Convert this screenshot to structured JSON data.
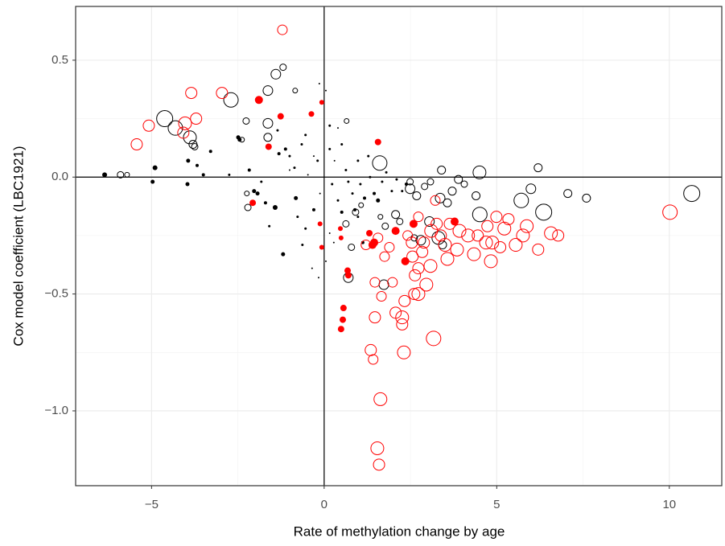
{
  "chart_data": {
    "type": "scatter",
    "xlabel": "Rate of methylation change by age",
    "ylabel": "Cox model coefficient (LBC1921)",
    "xlim": [
      -7.2,
      11.52
    ],
    "ylim": [
      -1.32,
      0.73
    ],
    "xticks": [
      {
        "value": -5,
        "label": "−5"
      },
      0,
      5,
      10
    ],
    "yticks": [
      {
        "value": -1.0,
        "label": "−1.0"
      },
      {
        "value": -0.5,
        "label": "−0.5"
      },
      {
        "value": 0,
        "label": "0.0"
      },
      0.5
    ],
    "grid": true,
    "hline": 0,
    "vline": 0,
    "series": [
      {
        "color": "#000000",
        "filled": true,
        "x": [
          -6.36,
          -4.9,
          -4.97,
          -3.94,
          -3.96,
          -3.68,
          -3.5,
          -3.29,
          -2.75,
          -2.49,
          -2.45,
          -2.17,
          -2.03,
          -1.93,
          -1.82,
          -1.7,
          -1.42,
          -1.19,
          -1.31,
          -1.12,
          -1.0,
          -0.86,
          -0.82,
          -0.65,
          -0.54,
          -0.47,
          -0.3,
          -0.19,
          -0.12,
          -0.14,
          0.05,
          0.16,
          0.23,
          0.3,
          0.4,
          0.51,
          0.63,
          0.7,
          0.82,
          0.89,
          0.98,
          1.05,
          1.17,
          1.28,
          1.33,
          1.45,
          1.56,
          1.68,
          1.8,
          1.96,
          2.1,
          2.26,
          2.38,
          -0.35,
          -0.16,
          0.05,
          0.16,
          0.28,
          -0.63,
          -0.54,
          -0.77,
          -1.59,
          0.4,
          0.51,
          0.16,
          -0.3,
          -1.35,
          -1.0,
          1.12,
          0.98
        ],
        "y": [
          0.01,
          0.04,
          -0.02,
          0.07,
          -0.03,
          0.05,
          0.01,
          0.11,
          0.01,
          0.17,
          0.16,
          0.03,
          -0.06,
          -0.07,
          -0.02,
          -0.11,
          -0.13,
          -0.33,
          0.1,
          0.12,
          0.09,
          0.04,
          -0.09,
          0.14,
          0.18,
          0.01,
          -0.14,
          0.07,
          -0.07,
          0.4,
          0.37,
          0.22,
          -0.03,
          0.07,
          -0.1,
          -0.15,
          0.03,
          -0.02,
          -0.07,
          -0.14,
          0.07,
          -0.03,
          -0.09,
          0.09,
          0.0,
          -0.07,
          -0.1,
          -0.02,
          0.02,
          -0.06,
          -0.01,
          -0.06,
          -0.03,
          -0.39,
          -0.43,
          -0.36,
          -0.24,
          -0.28,
          -0.29,
          -0.22,
          -0.17,
          -0.21,
          0.21,
          0.14,
          0.12,
          0.09,
          0.2,
          0.03,
          -0.28,
          -0.17
        ],
        "sizes": [
          3,
          3,
          2.5,
          2.5,
          2.5,
          2,
          2,
          2,
          1.5,
          2.5,
          2.5,
          2,
          2.5,
          2.5,
          1.5,
          2,
          3,
          2.5,
          2,
          2,
          1.5,
          1.5,
          2.5,
          1.5,
          1.5,
          1,
          2,
          1.5,
          1,
          1,
          1,
          1.5,
          1.5,
          1,
          1.5,
          2,
          1.5,
          1.5,
          1.5,
          2,
          1.5,
          1.5,
          2,
          1.5,
          1.5,
          2,
          2.5,
          1.5,
          1.5,
          1.5,
          1.5,
          1.5,
          2,
          1,
          1,
          1,
          1,
          1,
          1.5,
          1.5,
          1.5,
          1.5,
          1,
          1.5,
          1.5,
          1,
          1.5,
          1,
          2,
          1.5
        ]
      },
      {
        "color": "#000000",
        "filled": false,
        "x": [
          -2.7,
          -4.62,
          -4.31,
          -3.89,
          -3.8,
          -3.75,
          -5.9,
          -5.71,
          -1.4,
          -1.19,
          -1.63,
          -1.63,
          -1.63,
          -2.26,
          -2.38,
          -0.84,
          0.65,
          1.61,
          3.4,
          6.2,
          4.5,
          3.89,
          4.06,
          5.99,
          7.06,
          7.6,
          5.71,
          6.36,
          4.51,
          4.4,
          3.36,
          3.71,
          2.49,
          2.68,
          2.91,
          3.08,
          3.57,
          3.43,
          2.8,
          3.05,
          2.07,
          2.19,
          1.77,
          1.63,
          0.63,
          0.79,
          0.7,
          1.73,
          -2.21,
          10.65,
          -2.24,
          3.31,
          2.49,
          0.91,
          1.07,
          2.61
        ],
        "y": [
          0.33,
          0.25,
          0.21,
          0.17,
          0.14,
          0.13,
          0.01,
          0.01,
          0.44,
          0.47,
          0.37,
          0.23,
          0.17,
          0.24,
          0.16,
          0.37,
          0.24,
          0.06,
          0.03,
          0.04,
          0.02,
          -0.01,
          -0.03,
          -0.05,
          -0.07,
          -0.09,
          -0.1,
          -0.15,
          -0.16,
          -0.08,
          -0.09,
          -0.06,
          -0.05,
          -0.08,
          -0.04,
          -0.02,
          -0.11,
          -0.29,
          -0.27,
          -0.19,
          -0.16,
          -0.19,
          -0.21,
          -0.17,
          -0.2,
          -0.3,
          -0.43,
          -0.46,
          -0.13,
          -0.07,
          -0.07,
          -0.26,
          -0.02,
          -0.15,
          -0.12,
          -0.26
        ],
        "sizes": [
          9,
          10,
          9,
          8,
          5,
          4,
          4,
          3,
          6,
          4,
          6,
          6,
          5,
          4,
          3,
          3,
          3,
          9,
          5,
          5,
          8,
          5,
          4,
          6,
          5,
          5,
          9,
          10,
          9,
          5,
          6,
          5,
          6,
          5,
          4,
          4,
          5,
          5,
          6,
          6,
          5,
          4,
          4,
          3,
          4,
          4,
          6,
          6,
          4,
          10,
          3,
          8,
          4,
          4,
          3,
          4
        ]
      },
      {
        "color": "#ff0000",
        "filled": false,
        "x": [
          -3.85,
          -2.96,
          -1.21,
          -5.08,
          -5.43,
          -4.03,
          -3.71,
          -4.08,
          10.02,
          3.22,
          1.47,
          1.66,
          1.98,
          1.35,
          1.42,
          1.47,
          1.63,
          1.54,
          1.59,
          2.07,
          2.26,
          2.26,
          2.31,
          3.17,
          2.33,
          2.61,
          2.73,
          2.96,
          2.63,
          2.73,
          3.08,
          2.56,
          2.84,
          2.54,
          2.42,
          2.89,
          3.38,
          3.5,
          3.57,
          3.85,
          4.34,
          4.83,
          4.87,
          4.45,
          4.73,
          5.1,
          5.22,
          5.34,
          5.55,
          5.76,
          5.87,
          6.2,
          6.57,
          6.78,
          1.75,
          1.89,
          1.21,
          1.56,
          3.64,
          3.26,
          2.73,
          4.99,
          4.17,
          3.92,
          4.69,
          3.1
        ],
        "y": [
          0.36,
          0.36,
          0.63,
          0.22,
          0.14,
          0.23,
          0.25,
          0.19,
          -0.15,
          -0.1,
          -0.45,
          -0.51,
          -0.45,
          -0.74,
          -0.78,
          -0.6,
          -0.95,
          -1.16,
          -1.23,
          -0.58,
          -0.6,
          -0.63,
          -0.75,
          -0.69,
          -0.53,
          -0.5,
          -0.5,
          -0.46,
          -0.42,
          -0.39,
          -0.38,
          -0.34,
          -0.32,
          -0.28,
          -0.25,
          -0.28,
          -0.25,
          -0.29,
          -0.35,
          -0.31,
          -0.33,
          -0.36,
          -0.28,
          -0.25,
          -0.21,
          -0.3,
          -0.22,
          -0.18,
          -0.29,
          -0.25,
          -0.21,
          -0.31,
          -0.24,
          -0.25,
          -0.34,
          -0.3,
          -0.29,
          -0.26,
          -0.2,
          -0.2,
          -0.17,
          -0.17,
          -0.25,
          -0.23,
          -0.28,
          -0.23
        ],
        "sizes": [
          7,
          7,
          6,
          7,
          7,
          8,
          7,
          7,
          9,
          6,
          6,
          6,
          6,
          7,
          6,
          7,
          8,
          8,
          7,
          7,
          8,
          7,
          8,
          9,
          7,
          7,
          8,
          8,
          7,
          7,
          8,
          7,
          7,
          7,
          6,
          7,
          7,
          8,
          8,
          8,
          8,
          8,
          8,
          7,
          7,
          7,
          8,
          7,
          8,
          8,
          8,
          7,
          8,
          7,
          6,
          6,
          6,
          6,
          7,
          7,
          6,
          7,
          8,
          8,
          8,
          8
        ]
      },
      {
        "color": "#ff0000",
        "filled": true,
        "x": [
          -1.89,
          -1.26,
          -1.61,
          -0.37,
          -0.07,
          -2.07,
          -0.12,
          -0.07,
          0.47,
          0.49,
          0.56,
          0.54,
          0.49,
          0.7,
          0.68,
          1.56,
          1.31,
          1.45,
          1.4,
          2.07,
          2.35,
          2.59,
          3.78
        ],
        "y": [
          0.33,
          0.26,
          0.13,
          0.27,
          0.32,
          -0.11,
          -0.2,
          -0.3,
          -0.22,
          -0.26,
          -0.56,
          -0.61,
          -0.65,
          -0.42,
          -0.4,
          0.15,
          -0.24,
          -0.28,
          -0.29,
          -0.23,
          -0.36,
          -0.2,
          -0.19
        ],
        "sizes": [
          5,
          4,
          4,
          3.5,
          3,
          4,
          3,
          3,
          3,
          3,
          4,
          4,
          4,
          4,
          4,
          4,
          4,
          5,
          5,
          5,
          5,
          5,
          5
        ]
      }
    ]
  }
}
